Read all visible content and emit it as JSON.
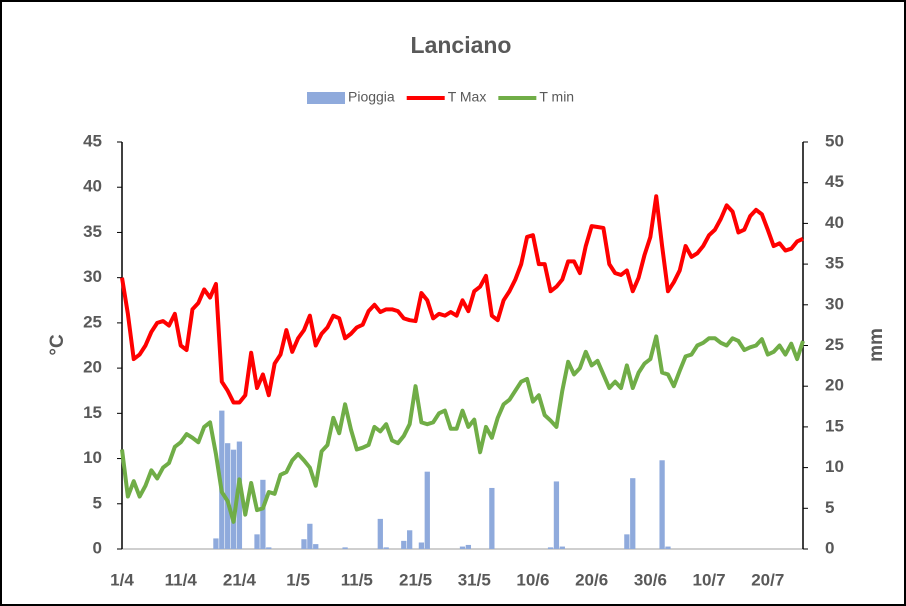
{
  "chart_data": {
    "type": "combo",
    "title": "Lanciano",
    "y_label": "°C",
    "y2_label": "mm",
    "categories": [
      "1/4",
      null,
      null,
      null,
      null,
      null,
      null,
      null,
      null,
      null,
      "11/4",
      null,
      null,
      null,
      null,
      null,
      null,
      null,
      null,
      null,
      "21/4",
      null,
      null,
      null,
      null,
      null,
      null,
      null,
      null,
      null,
      "1/5",
      null,
      null,
      null,
      null,
      null,
      null,
      null,
      null,
      null,
      "11/5",
      null,
      null,
      null,
      null,
      null,
      null,
      null,
      null,
      null,
      "21/5",
      null,
      null,
      null,
      null,
      null,
      null,
      null,
      null,
      null,
      "31/5",
      null,
      null,
      null,
      null,
      null,
      null,
      null,
      null,
      null,
      "10/6",
      null,
      null,
      null,
      null,
      null,
      null,
      null,
      null,
      null,
      "20/6",
      null,
      null,
      null,
      null,
      null,
      null,
      null,
      null,
      null,
      "30/6",
      null,
      null,
      null,
      null,
      null,
      null,
      null,
      null,
      null,
      "10/7",
      null,
      null,
      null,
      null,
      null,
      null,
      null,
      null,
      null,
      "20/7",
      null,
      null,
      null,
      null,
      null,
      null
    ],
    "ylim": [
      0,
      45
    ],
    "yticks": [
      0,
      5,
      10,
      15,
      20,
      25,
      30,
      35,
      40,
      45
    ],
    "y2lim": [
      0,
      50
    ],
    "y2ticks": [
      0,
      5,
      10,
      15,
      20,
      25,
      30,
      35,
      40,
      45,
      50
    ],
    "grid": false,
    "legend": "top",
    "series": [
      {
        "name": "Pioggia",
        "type": "bar",
        "axis": "y2",
        "color": "#8faadc",
        "values": [
          0,
          0,
          0,
          0,
          0,
          0,
          0,
          0,
          0,
          0,
          0,
          0,
          0,
          0,
          0,
          0,
          1.3,
          17,
          13,
          12.2,
          13.2,
          0,
          0,
          1.8,
          8.5,
          0.2,
          0,
          0,
          0,
          0,
          0,
          1.2,
          3.1,
          0.6,
          0,
          0,
          0,
          0,
          0.2,
          0,
          0,
          0,
          0,
          0,
          3.7,
          0.2,
          0,
          0,
          1,
          2.3,
          0,
          0.8,
          9.5,
          0,
          0,
          0,
          0,
          0,
          0.3,
          0.5,
          0,
          0,
          0,
          7.5,
          0,
          0,
          0,
          0,
          0,
          0,
          0,
          0,
          0,
          0.2,
          8.3,
          0.3,
          0,
          0,
          0,
          0,
          0,
          0,
          0,
          0,
          0,
          0,
          1.8,
          8.7,
          0,
          0,
          0,
          0,
          10.9,
          0.3,
          0,
          0,
          0,
          0,
          0,
          0,
          0,
          0,
          0,
          0,
          0,
          0,
          0,
          0,
          0,
          0,
          0,
          0,
          0,
          0,
          0,
          0,
          0
        ]
      },
      {
        "name": "T Max",
        "type": "line",
        "color": "#ff0000",
        "values": [
          30,
          26,
          21,
          21.5,
          22.5,
          24,
          25,
          25.2,
          24.7,
          26,
          22.5,
          22,
          26.5,
          27.2,
          28.7,
          27.8,
          29.3,
          18.5,
          17.5,
          16.2,
          16.2,
          17,
          21.7,
          17.8,
          19.3,
          17,
          20.5,
          21.5,
          24.2,
          21.8,
          23.3,
          24.2,
          25.8,
          22.5,
          23.8,
          24.5,
          25.8,
          25.5,
          23.3,
          23.8,
          24.5,
          24.8,
          26.3,
          27,
          26.2,
          26.5,
          26.5,
          26.3,
          25.5,
          25.3,
          25.2,
          28.3,
          27.5,
          25.5,
          26,
          25.8,
          26.2,
          25.8,
          27.5,
          26.3,
          28.5,
          29,
          30.2,
          25.8,
          25.3,
          27.5,
          28.5,
          29.8,
          31.5,
          34.5,
          34.7,
          31.5,
          31.5,
          28.5,
          29,
          29.8,
          31.8,
          31.8,
          30.5,
          33.5,
          35.7,
          35.6,
          35.5,
          31.5,
          30.5,
          30.3,
          30.8,
          28.5,
          30,
          32.5,
          34.5,
          39,
          33.5,
          28.5,
          29.5,
          30.8,
          33.5,
          32.3,
          32.7,
          33.5,
          34.7,
          35.3,
          36.5,
          38,
          37.3,
          35,
          35.3,
          36.8,
          37.5,
          37,
          35.3,
          33.5,
          33.8,
          33,
          33.2,
          34,
          34.3
        ]
      },
      {
        "name": "T min",
        "type": "line",
        "color": "#70ad47",
        "values": [
          11,
          5.8,
          7.5,
          5.8,
          7,
          8.7,
          7.8,
          9,
          9.5,
          11.3,
          11.8,
          12.7,
          12.3,
          11.8,
          13.5,
          14,
          10.5,
          6.3,
          5.3,
          3,
          7.7,
          3.8,
          7.3,
          4.3,
          4.5,
          6.3,
          6.1,
          8.2,
          8.5,
          9.8,
          10.5,
          9.8,
          9,
          7,
          10.8,
          11.5,
          14.5,
          12.8,
          16,
          13.2,
          11,
          11.2,
          11.5,
          13.5,
          13,
          13.8,
          12,
          11.7,
          12.5,
          13.8,
          18,
          14,
          13.8,
          14,
          15,
          15.3,
          13.3,
          13.3,
          15.3,
          13.5,
          14.3,
          10.7,
          13.5,
          12.3,
          14.5,
          16,
          16.5,
          17.5,
          18.5,
          18.8,
          16.3,
          17,
          14.8,
          14.2,
          13.5,
          17.5,
          20.7,
          19.3,
          20,
          21.8,
          20.3,
          20.8,
          19.3,
          17.8,
          18.5,
          17.8,
          20.3,
          17.8,
          19.5,
          20.5,
          21,
          23.5,
          19.5,
          19.3,
          18,
          19.7,
          21.3,
          21.5,
          22.5,
          22.8,
          23.3,
          23.3,
          22.8,
          22.5,
          23.3,
          23,
          22,
          22.3,
          22.5,
          23.2,
          21.5,
          21.8,
          22.5,
          21.5,
          22.7,
          21,
          23
        ]
      }
    ]
  }
}
